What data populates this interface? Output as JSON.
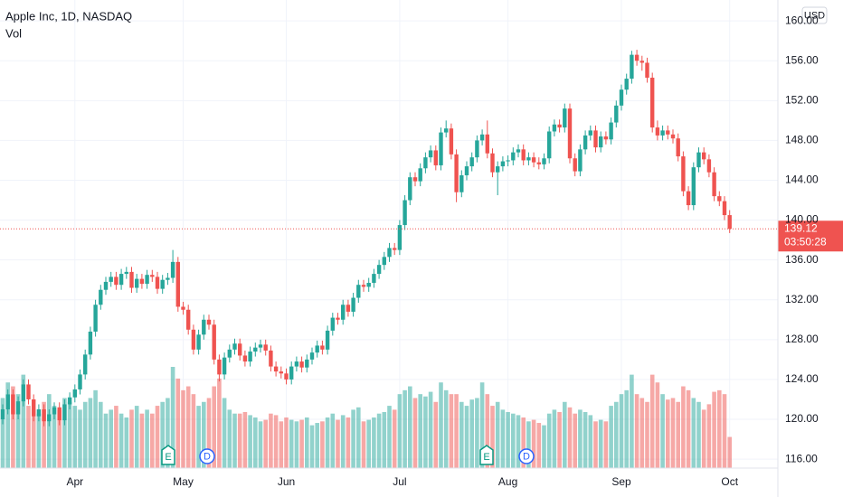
{
  "chart_data": {
    "type": "candlestick",
    "title": "Apple Inc, 1D, NASDAQ",
    "subtitle": "Vol",
    "currency": "USD",
    "countdown": "03:50:28",
    "up_color": "#26a69a",
    "down_color": "#ef5350",
    "grid": true,
    "ylim": [
      115.1,
      162.1
    ],
    "yticks": [
      {
        "value": 116,
        "label": "116.00"
      },
      {
        "value": 120,
        "label": "120.00"
      },
      {
        "value": 124,
        "label": "124.00"
      },
      {
        "value": 128,
        "label": "128.00"
      },
      {
        "value": 132,
        "label": "132.00"
      },
      {
        "value": 136,
        "label": "136.00"
      },
      {
        "value": 140,
        "label": "140.00"
      },
      {
        "value": 144,
        "label": "144.00"
      },
      {
        "value": 148,
        "label": "148.00"
      },
      {
        "value": 152,
        "label": "152.00"
      },
      {
        "value": 156,
        "label": "156.00"
      },
      {
        "value": 160,
        "label": "160.00"
      }
    ],
    "events": [
      "E",
      "D",
      "E",
      "D"
    ],
    "categories": [
      null,
      null,
      null,
      null,
      null,
      null,
      null,
      null,
      null,
      null,
      null,
      null,
      null,
      null,
      "Apr",
      null,
      null,
      null,
      null,
      null,
      null,
      null,
      null,
      null,
      null,
      null,
      null,
      null,
      null,
      null,
      null,
      null,
      null,
      null,
      null,
      "May",
      null,
      null,
      null,
      null,
      null,
      null,
      null,
      null,
      null,
      null,
      null,
      null,
      null,
      null,
      null,
      null,
      null,
      null,
      null,
      "Jun",
      null,
      null,
      null,
      null,
      null,
      null,
      null,
      null,
      null,
      null,
      null,
      null,
      null,
      null,
      null,
      null,
      null,
      null,
      null,
      null,
      null,
      "Jul",
      null,
      null,
      null,
      null,
      null,
      null,
      null,
      null,
      null,
      null,
      null,
      null,
      null,
      null,
      null,
      null,
      null,
      null,
      null,
      null,
      "Aug",
      null,
      null,
      null,
      null,
      null,
      null,
      null,
      null,
      null,
      null,
      null,
      null,
      null,
      null,
      null,
      null,
      null,
      null,
      null,
      null,
      null,
      "Sep",
      null,
      null,
      null,
      null,
      null,
      null,
      null,
      null,
      null,
      null,
      null,
      null,
      null,
      null,
      null,
      null,
      null,
      null,
      null,
      null,
      "Oct"
    ],
    "ohlc": [
      [
        120.0,
        121.5,
        119.5,
        121.0
      ],
      [
        121.0,
        123.0,
        120.5,
        122.5
      ],
      [
        122.5,
        123.0,
        120.0,
        120.5
      ],
      [
        120.5,
        122.3,
        120.0,
        121.8
      ],
      [
        121.8,
        124.0,
        121.3,
        123.5
      ],
      [
        123.5,
        124.0,
        121.5,
        122.0
      ],
      [
        122.0,
        122.5,
        119.8,
        120.3
      ],
      [
        120.3,
        121.5,
        119.8,
        121.0
      ],
      [
        121.0,
        121.5,
        119.3,
        119.8
      ],
      [
        119.8,
        121.0,
        119.3,
        120.5
      ],
      [
        120.5,
        121.7,
        120.0,
        121.2
      ],
      [
        121.2,
        121.7,
        119.4,
        119.9
      ],
      [
        119.9,
        122.0,
        119.4,
        121.5
      ],
      [
        121.5,
        122.7,
        121.0,
        122.2
      ],
      [
        122.2,
        123.5,
        121.7,
        123.0
      ],
      [
        123.0,
        125.0,
        122.5,
        124.5
      ],
      [
        124.5,
        127.0,
        124.0,
        126.5
      ],
      [
        126.5,
        129.3,
        126.0,
        128.8
      ],
      [
        128.8,
        132.0,
        128.3,
        131.5
      ],
      [
        131.5,
        133.5,
        131.0,
        133.0
      ],
      [
        133.0,
        134.3,
        132.5,
        133.8
      ],
      [
        133.8,
        134.8,
        133.3,
        134.3
      ],
      [
        134.3,
        134.8,
        133.0,
        133.5
      ],
      [
        133.5,
        135.1,
        133.0,
        134.6
      ],
      [
        134.6,
        135.3,
        134.1,
        134.8
      ],
      [
        134.8,
        135.3,
        132.7,
        133.2
      ],
      [
        133.2,
        134.6,
        132.7,
        134.1
      ],
      [
        134.1,
        134.6,
        133.1,
        133.6
      ],
      [
        133.6,
        135.0,
        133.1,
        134.5
      ],
      [
        134.5,
        135.0,
        133.8,
        134.3
      ],
      [
        134.3,
        134.8,
        132.6,
        133.1
      ],
      [
        133.1,
        134.5,
        132.6,
        134.0
      ],
      [
        134.0,
        134.7,
        133.5,
        134.2
      ],
      [
        134.2,
        137.0,
        133.7,
        135.8
      ],
      [
        135.8,
        136.3,
        130.8,
        131.3
      ],
      [
        131.3,
        131.8,
        130.5,
        131.0
      ],
      [
        131.0,
        131.5,
        128.5,
        129.0
      ],
      [
        129.0,
        129.5,
        126.5,
        127.0
      ],
      [
        127.0,
        129.0,
        126.5,
        128.5
      ],
      [
        128.5,
        130.5,
        128.0,
        130.0
      ],
      [
        130.0,
        130.5,
        129.0,
        129.5
      ],
      [
        129.5,
        130.0,
        125.5,
        126.0
      ],
      [
        126.0,
        126.5,
        123.8,
        124.5
      ],
      [
        124.5,
        126.7,
        124.0,
        126.2
      ],
      [
        126.2,
        127.5,
        125.7,
        127.0
      ],
      [
        127.0,
        128.1,
        126.5,
        127.6
      ],
      [
        127.6,
        128.1,
        125.9,
        126.4
      ],
      [
        126.4,
        126.9,
        125.3,
        125.8
      ],
      [
        125.8,
        127.3,
        125.3,
        126.8
      ],
      [
        126.8,
        127.7,
        126.3,
        127.2
      ],
      [
        127.2,
        128.0,
        126.7,
        127.5
      ],
      [
        127.5,
        128.0,
        126.4,
        126.9
      ],
      [
        126.9,
        127.4,
        124.8,
        125.3
      ],
      [
        125.3,
        125.8,
        124.3,
        124.8
      ],
      [
        124.8,
        125.3,
        124.1,
        124.6
      ],
      [
        124.6,
        125.1,
        123.5,
        124.0
      ],
      [
        124.0,
        125.8,
        123.5,
        125.3
      ],
      [
        125.3,
        126.3,
        124.8,
        125.8
      ],
      [
        125.8,
        126.3,
        124.7,
        125.2
      ],
      [
        125.2,
        126.5,
        124.7,
        126.0
      ],
      [
        126.0,
        127.2,
        125.5,
        126.7
      ],
      [
        126.7,
        127.9,
        126.2,
        127.4
      ],
      [
        127.4,
        127.9,
        126.5,
        127.0
      ],
      [
        127.0,
        129.4,
        126.5,
        128.9
      ],
      [
        128.9,
        130.7,
        128.4,
        130.2
      ],
      [
        130.2,
        130.7,
        129.5,
        130.0
      ],
      [
        130.0,
        132.0,
        129.5,
        131.5
      ],
      [
        131.5,
        132.0,
        130.3,
        130.8
      ],
      [
        130.8,
        132.7,
        130.3,
        132.2
      ],
      [
        132.2,
        134.0,
        131.7,
        133.5
      ],
      [
        133.5,
        134.0,
        132.8,
        133.3
      ],
      [
        133.3,
        134.2,
        132.8,
        133.7
      ],
      [
        133.7,
        135.1,
        133.2,
        134.6
      ],
      [
        134.6,
        136.0,
        134.1,
        135.5
      ],
      [
        135.5,
        136.8,
        135.0,
        136.3
      ],
      [
        136.3,
        137.7,
        135.8,
        137.2
      ],
      [
        137.2,
        137.7,
        136.5,
        137.0
      ],
      [
        137.0,
        140.0,
        136.5,
        139.5
      ],
      [
        139.5,
        142.5,
        139.0,
        142.0
      ],
      [
        142.0,
        144.8,
        141.5,
        144.3
      ],
      [
        144.3,
        144.8,
        143.4,
        143.9
      ],
      [
        143.9,
        145.7,
        143.4,
        145.2
      ],
      [
        145.2,
        146.8,
        144.7,
        146.3
      ],
      [
        146.3,
        147.5,
        145.8,
        147.0
      ],
      [
        147.0,
        147.5,
        145.0,
        145.5
      ],
      [
        145.5,
        149.3,
        145.0,
        148.8
      ],
      [
        148.8,
        150.0,
        148.3,
        149.2
      ],
      [
        149.2,
        149.7,
        146.1,
        146.6
      ],
      [
        146.6,
        147.1,
        141.8,
        142.8
      ],
      [
        142.8,
        145.0,
        142.3,
        144.5
      ],
      [
        144.5,
        145.9,
        144.0,
        145.4
      ],
      [
        145.4,
        146.8,
        144.9,
        146.3
      ],
      [
        146.3,
        148.5,
        145.8,
        148.0
      ],
      [
        148.0,
        149.1,
        147.5,
        148.6
      ],
      [
        148.6,
        150.0,
        146.2,
        146.7
      ],
      [
        146.7,
        147.2,
        144.3,
        144.8
      ],
      [
        144.8,
        145.9,
        142.5,
        145.4
      ],
      [
        145.4,
        146.4,
        144.9,
        145.9
      ],
      [
        145.9,
        146.5,
        145.4,
        146.0
      ],
      [
        146.0,
        147.3,
        145.5,
        146.8
      ],
      [
        146.8,
        147.6,
        146.3,
        147.1
      ],
      [
        147.1,
        147.6,
        145.5,
        146.0
      ],
      [
        146.0,
        146.8,
        145.5,
        146.3
      ],
      [
        146.3,
        146.8,
        145.3,
        145.8
      ],
      [
        145.8,
        146.3,
        145.1,
        145.6
      ],
      [
        145.6,
        146.7,
        145.1,
        146.2
      ],
      [
        146.2,
        149.4,
        145.7,
        148.9
      ],
      [
        148.9,
        150.1,
        148.4,
        149.6
      ],
      [
        149.6,
        150.1,
        148.8,
        149.3
      ],
      [
        149.3,
        151.7,
        148.8,
        151.2
      ],
      [
        151.2,
        151.7,
        145.7,
        146.2
      ],
      [
        146.2,
        146.7,
        144.4,
        144.9
      ],
      [
        144.9,
        147.6,
        144.4,
        147.1
      ],
      [
        147.1,
        149.0,
        146.6,
        148.5
      ],
      [
        148.5,
        149.5,
        148.0,
        149.0
      ],
      [
        149.0,
        149.5,
        146.8,
        147.3
      ],
      [
        147.3,
        148.9,
        146.8,
        148.4
      ],
      [
        148.4,
        148.9,
        147.6,
        148.1
      ],
      [
        148.1,
        150.3,
        147.6,
        149.8
      ],
      [
        149.8,
        152.0,
        149.3,
        151.5
      ],
      [
        151.5,
        153.6,
        151.0,
        153.1
      ],
      [
        153.1,
        154.7,
        152.6,
        154.2
      ],
      [
        154.2,
        157.0,
        153.7,
        156.6
      ],
      [
        156.6,
        157.1,
        155.5,
        156.0
      ],
      [
        156.0,
        156.5,
        155.0,
        155.8
      ],
      [
        155.8,
        156.3,
        153.8,
        154.3
      ],
      [
        154.3,
        154.8,
        148.8,
        149.3
      ],
      [
        149.3,
        150.0,
        148.0,
        148.5
      ],
      [
        148.5,
        149.5,
        148.0,
        149.0
      ],
      [
        149.0,
        149.5,
        148.1,
        148.6
      ],
      [
        148.6,
        149.1,
        147.7,
        148.2
      ],
      [
        148.2,
        148.7,
        145.9,
        146.4
      ],
      [
        146.4,
        146.9,
        142.4,
        142.9
      ],
      [
        142.9,
        143.4,
        141.0,
        141.5
      ],
      [
        141.5,
        145.8,
        141.0,
        145.3
      ],
      [
        145.3,
        147.3,
        144.8,
        146.8
      ],
      [
        146.8,
        147.3,
        145.6,
        146.1
      ],
      [
        146.1,
        146.6,
        144.3,
        144.8
      ],
      [
        144.8,
        145.3,
        141.9,
        142.4
      ],
      [
        142.4,
        142.9,
        141.4,
        141.9
      ],
      [
        141.9,
        142.4,
        140.0,
        140.5
      ],
      [
        140.5,
        141.0,
        138.7,
        139.12
      ]
    ],
    "volume": [
      90,
      110,
      105,
      95,
      120,
      80,
      75,
      70,
      85,
      95,
      80,
      75,
      90,
      85,
      80,
      75,
      85,
      90,
      100,
      85,
      70,
      75,
      80,
      70,
      65,
      75,
      80,
      70,
      75,
      70,
      80,
      85,
      90,
      130,
      115,
      100,
      105,
      95,
      80,
      85,
      90,
      105,
      115,
      90,
      75,
      70,
      70,
      72,
      68,
      65,
      60,
      62,
      70,
      68,
      60,
      65,
      62,
      60,
      62,
      65,
      55,
      58,
      60,
      65,
      70,
      62,
      68,
      65,
      75,
      78,
      60,
      62,
      65,
      70,
      72,
      80,
      75,
      95,
      100,
      105,
      90,
      95,
      92,
      98,
      85,
      110,
      100,
      95,
      95,
      85,
      80,
      88,
      90,
      110,
      95,
      80,
      85,
      75,
      72,
      70,
      68,
      65,
      60,
      62,
      58,
      55,
      70,
      75,
      72,
      85,
      78,
      70,
      75,
      72,
      68,
      60,
      62,
      60,
      80,
      85,
      95,
      100,
      120,
      95,
      90,
      85,
      120,
      110,
      95,
      88,
      90,
      85,
      105,
      100,
      90,
      85,
      75,
      82,
      98,
      100,
      95,
      40
    ]
  }
}
